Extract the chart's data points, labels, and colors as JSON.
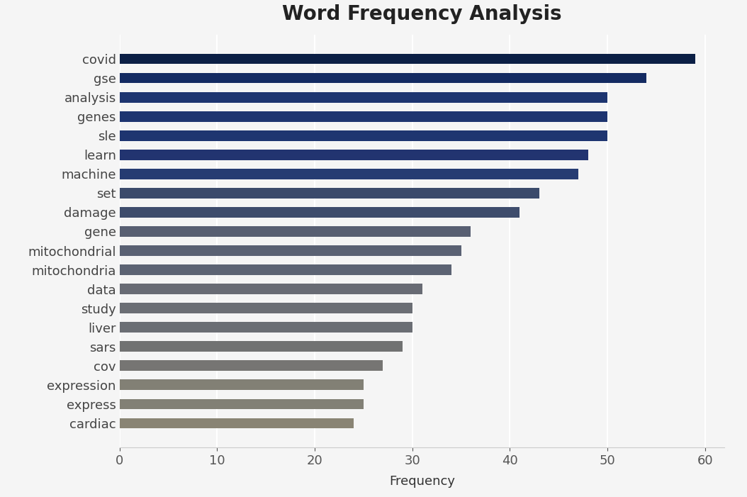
{
  "title": "Word Frequency Analysis",
  "xlabel": "Frequency",
  "categories": [
    "covid",
    "gse",
    "analysis",
    "genes",
    "sle",
    "learn",
    "machine",
    "set",
    "damage",
    "gene",
    "mitochondrial",
    "mitochondria",
    "data",
    "study",
    "liver",
    "sars",
    "cov",
    "expression",
    "express",
    "cardiac"
  ],
  "values": [
    59,
    54,
    50,
    50,
    50,
    48,
    47,
    43,
    41,
    36,
    35,
    34,
    31,
    30,
    30,
    29,
    27,
    25,
    25,
    24
  ],
  "bar_colors": [
    "#0b1f45",
    "#142b62",
    "#1e3570",
    "#1e3570",
    "#1e3570",
    "#223470",
    "#263c72",
    "#3b4a6b",
    "#3e4c6c",
    "#585f72",
    "#5a6173",
    "#5c6373",
    "#686b74",
    "#6b6e74",
    "#6b6e74",
    "#717272",
    "#767573",
    "#828075",
    "#828075",
    "#898474"
  ],
  "background_color": "#f5f5f5",
  "title_fontsize": 20,
  "label_fontsize": 13,
  "tick_fontsize": 13,
  "xlim": [
    0,
    62
  ],
  "xticks": [
    0,
    10,
    20,
    30,
    40,
    50,
    60
  ]
}
